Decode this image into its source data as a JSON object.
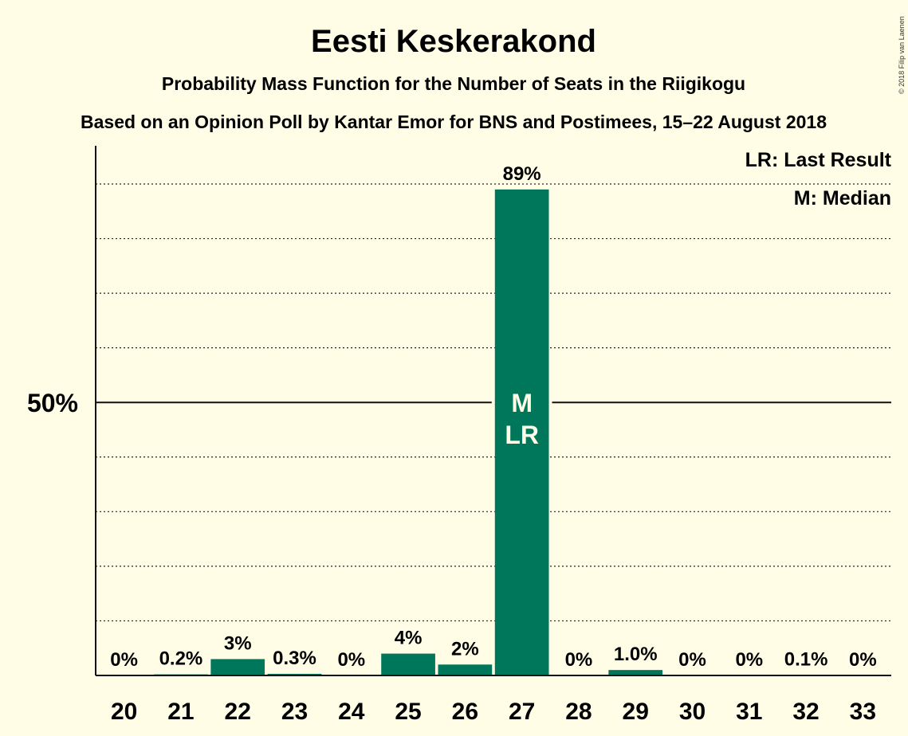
{
  "chart_data": {
    "type": "bar",
    "title": "Eesti Keskerakond",
    "subtitle": "Probability Mass Function for the Number of Seats in the Riigikogu",
    "subtitle2": "Based on an Opinion Poll by Kantar Emor for BNS and Postimees, 15–22 August 2018",
    "categories": [
      "20",
      "21",
      "22",
      "23",
      "24",
      "25",
      "26",
      "27",
      "28",
      "29",
      "30",
      "31",
      "32",
      "33"
    ],
    "values": [
      0,
      0.2,
      3,
      0.3,
      0,
      4,
      2,
      89,
      0,
      1.0,
      0,
      0,
      0.1,
      0
    ],
    "value_labels": [
      "0%",
      "0.2%",
      "3%",
      "0.3%",
      "0%",
      "4%",
      "2%",
      "89%",
      "0%",
      "1.0%",
      "0%",
      "0%",
      "0.1%",
      "0%"
    ],
    "ylim": [
      0,
      97
    ],
    "y_tick_label": "50%",
    "y_tick_value": 50,
    "dotted_gridlines": [
      10,
      20,
      30,
      40,
      60,
      70,
      80,
      90
    ],
    "bar_color": "#00775A",
    "median_seat": "27",
    "last_result_seat": "27",
    "median_marker": "M",
    "last_result_marker": "LR",
    "legend": [
      "LR: Last Result",
      "M: Median"
    ],
    "legend_position": "top-right",
    "copyright": "© 2018 Filip van Laenen"
  }
}
